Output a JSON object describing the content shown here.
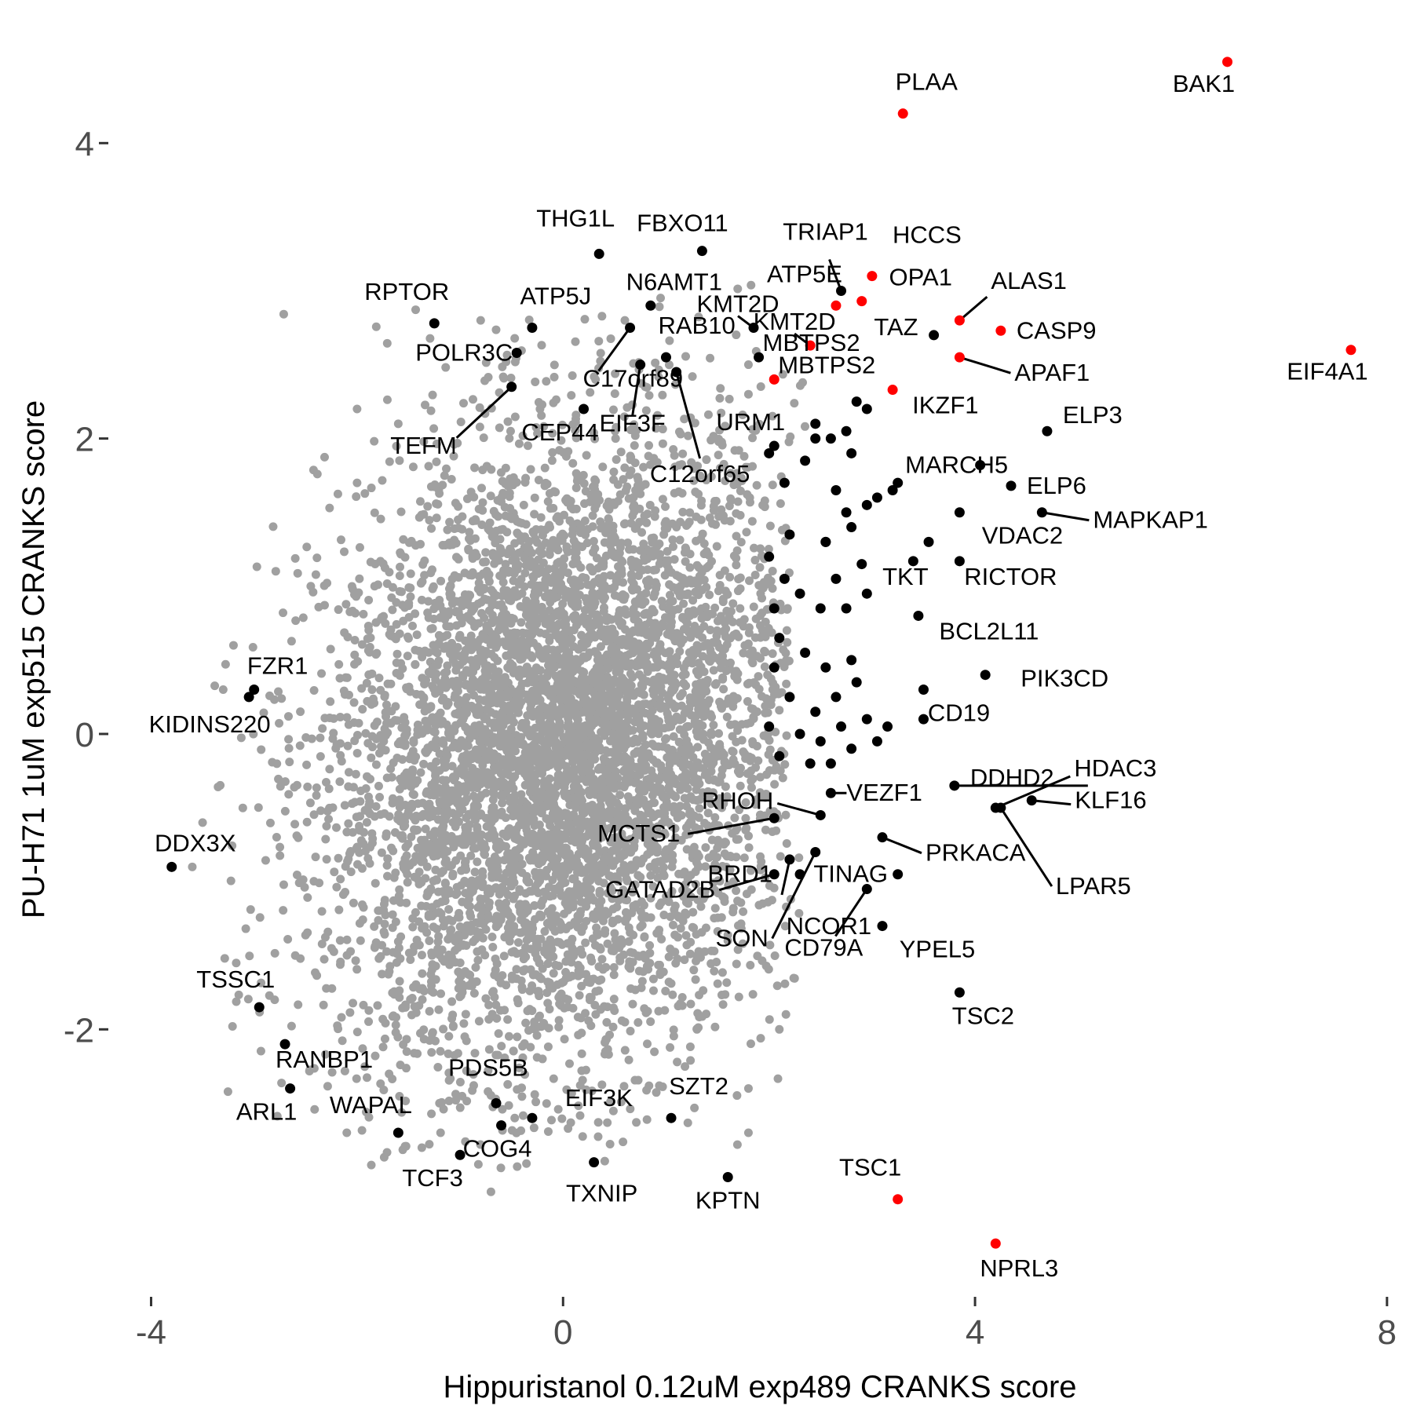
{
  "chart_data": {
    "type": "scatter",
    "title": "",
    "xlabel": "Hippuristanol 0.12uM exp489 CRANKS score",
    "ylabel": "PU-H71 1uM exp515 CRANKS score",
    "xlim": [
      -4.4,
      8.1
    ],
    "ylim": [
      -3.8,
      4.65
    ],
    "x_ticks": [
      -4,
      0,
      4,
      8
    ],
    "y_ticks": [
      -2,
      0,
      2,
      4
    ],
    "x_tick_labels": [
      "-4",
      "0",
      "4",
      "8"
    ],
    "y_tick_labels": [
      "-2",
      "0",
      "2",
      "4"
    ],
    "grid": false,
    "legend": "none",
    "colors": {
      "background": "#a0a0a0",
      "labeled": "#000000",
      "highlight": "#ff0000",
      "axis_text": "#4d4d4d"
    },
    "background_cloud": {
      "description_of_marks": "thousands of unlabeled gray points, dense elliptical cloud",
      "center": [
        0.0,
        -0.1
      ],
      "x_spread": 1.15,
      "y_spread": 1.05,
      "n_points": 6000,
      "outliers": [
        [
          -3.2,
          0.6
        ],
        [
          -3.6,
          -0.9
        ],
        [
          -2.6,
          -1.5
        ],
        [
          -2.8,
          -1.8
        ],
        [
          -2.1,
          -2.7
        ],
        [
          -1.2,
          -2.5
        ],
        [
          -0.7,
          -3.1
        ],
        [
          -0.2,
          -2.2
        ],
        [
          1.3,
          -2.0
        ],
        [
          2.1,
          -2.0
        ],
        [
          1.8,
          -2.7
        ],
        [
          1.8,
          -2.4
        ],
        [
          -1.6,
          2.1
        ],
        [
          -0.8,
          2.8
        ],
        [
          0.6,
          2.8
        ],
        [
          1.8,
          2.5
        ],
        [
          -2.0,
          1.7
        ],
        [
          1.8,
          2.3
        ],
        [
          -3.3,
          0.3
        ],
        [
          -3.5,
          -0.6
        ],
        [
          -2.0,
          2.2
        ],
        [
          1.6,
          -1.4
        ]
      ]
    },
    "series": [
      {
        "name": "",
        "color": "#ff0000",
        "points": [
          {
            "x": 3.3,
            "y": 4.2,
            "label": "PLAA"
          },
          {
            "x": 6.45,
            "y": 4.55,
            "label": "BAK1"
          },
          {
            "x": 7.65,
            "y": 2.6,
            "label": "EIF4A1"
          },
          {
            "x": 3.0,
            "y": 3.1,
            "label": "HCCS"
          },
          {
            "x": 2.9,
            "y": 2.93,
            "label": "OPA1"
          },
          {
            "x": 2.65,
            "y": 2.9,
            "label": "ATP5E"
          },
          {
            "x": 3.85,
            "y": 2.8,
            "label": "ALAS1"
          },
          {
            "x": 4.25,
            "y": 2.73,
            "label": "CASP9"
          },
          {
            "x": 2.4,
            "y": 2.63,
            "label": "KMT2D"
          },
          {
            "x": 3.85,
            "y": 2.55,
            "label": "APAF1"
          },
          {
            "x": 2.05,
            "y": 2.4,
            "label": "MBTPS2"
          },
          {
            "x": 3.2,
            "y": 2.33,
            "label": "IKZF1"
          },
          {
            "x": 3.25,
            "y": -3.15,
            "label": "TSC1"
          },
          {
            "x": 4.2,
            "y": -3.45,
            "label": "NPRL3"
          }
        ]
      },
      {
        "name": "",
        "color": "#000000",
        "points": [
          {
            "x": 0.35,
            "y": 3.25,
            "label": "THG1L"
          },
          {
            "x": 1.35,
            "y": 3.27,
            "label": "FBXO11"
          },
          {
            "x": 2.7,
            "y": 3.0,
            "label": "TRIAP1"
          },
          {
            "x": 0.85,
            "y": 2.9,
            "label": "N6AMT1"
          },
          {
            "x": -1.25,
            "y": 2.78,
            "label": "RPTOR"
          },
          {
            "x": -0.3,
            "y": 2.75,
            "label": "ATP5J"
          },
          {
            "x": 1.85,
            "y": 2.75,
            "label": "KMT2D"
          },
          {
            "x": -0.45,
            "y": 2.58,
            "label": "POLR3C"
          },
          {
            "x": 3.6,
            "y": 2.7,
            "label": "TAZ"
          },
          {
            "x": 0.65,
            "y": 2.75,
            "label": "C17orf89"
          },
          {
            "x": 1.0,
            "y": 2.55,
            "label": "RAB10"
          },
          {
            "x": 0.75,
            "y": 2.5,
            "label": "EIF3F"
          },
          {
            "x": 1.9,
            "y": 2.55,
            "label": "MBTPS2"
          },
          {
            "x": -0.5,
            "y": 2.35,
            "label": "TEFM"
          },
          {
            "x": 1.1,
            "y": 2.45,
            "label": "C12orf65"
          },
          {
            "x": 0.2,
            "y": 2.2,
            "label": "CEP44"
          },
          {
            "x": 2.05,
            "y": 1.95,
            "label": "URM1"
          },
          {
            "x": 4.7,
            "y": 2.05,
            "label": "ELP3"
          },
          {
            "x": 4.05,
            "y": 1.82,
            "label": "MARCH5"
          },
          {
            "x": 4.35,
            "y": 1.68,
            "label": "ELP6"
          },
          {
            "x": 4.65,
            "y": 1.5,
            "label": "MAPKAP1"
          },
          {
            "x": 3.85,
            "y": 1.5,
            "label": "VDAC2"
          },
          {
            "x": 3.4,
            "y": 1.17,
            "label": "TKT"
          },
          {
            "x": 3.85,
            "y": 1.17,
            "label": "RICTOR"
          },
          {
            "x": 3.45,
            "y": 0.8,
            "label": "BCL2L11"
          },
          {
            "x": 4.1,
            "y": 0.4,
            "label": "PIK3CD"
          },
          {
            "x": 3.5,
            "y": 0.3,
            "label": "CD19"
          },
          {
            "x": 3.8,
            "y": -0.35,
            "label": "DDHD2"
          },
          {
            "x": 4.2,
            "y": -0.5,
            "label": "HDAC3"
          },
          {
            "x": 4.55,
            "y": -0.45,
            "label": "KLF16"
          },
          {
            "x": 4.25,
            "y": -0.5,
            "label": "LPAR5"
          },
          {
            "x": 2.6,
            "y": -0.4,
            "label": "VEZF1"
          },
          {
            "x": 2.5,
            "y": -0.55,
            "label": "RHOH"
          },
          {
            "x": 2.05,
            "y": -0.57,
            "label": "MCTS1"
          },
          {
            "x": 2.3,
            "y": -0.95,
            "label": "BRD1"
          },
          {
            "x": 3.1,
            "y": -0.7,
            "label": "PRKACA"
          },
          {
            "x": 3.25,
            "y": -0.95,
            "label": "TINAG"
          },
          {
            "x": 2.05,
            "y": -0.95,
            "label": "GATAD2B"
          },
          {
            "x": 2.2,
            "y": -0.85,
            "label": "NCOR1"
          },
          {
            "x": 2.95,
            "y": -1.05,
            "label": "CD79A"
          },
          {
            "x": 3.1,
            "y": -1.3,
            "label": "YPEL5"
          },
          {
            "x": 2.45,
            "y": -0.8,
            "label": "SON"
          },
          {
            "x": 3.85,
            "y": -1.75,
            "label": "TSC2"
          },
          {
            "x": -3.0,
            "y": 0.3,
            "label": "FZR1"
          },
          {
            "x": -3.05,
            "y": 0.25,
            "label": "KIDINS220"
          },
          {
            "x": -3.8,
            "y": -0.9,
            "label": "DDX3X"
          },
          {
            "x": -2.95,
            "y": -1.85,
            "label": "TSSC1"
          },
          {
            "x": -2.7,
            "y": -2.1,
            "label": "RANBP1"
          },
          {
            "x": -2.65,
            "y": -2.4,
            "label": "ARL1"
          },
          {
            "x": -1.6,
            "y": -2.7,
            "label": "WAPAL"
          },
          {
            "x": -0.65,
            "y": -2.5,
            "label": "PDS5B"
          },
          {
            "x": -0.3,
            "y": -2.6,
            "label": "EIF3K"
          },
          {
            "x": -0.6,
            "y": -2.65,
            "label": "COG4"
          },
          {
            "x": -1.0,
            "y": -2.85,
            "label": "TCF3"
          },
          {
            "x": 0.3,
            "y": -2.9,
            "label": "TXNIP"
          },
          {
            "x": 1.05,
            "y": -2.6,
            "label": "SZT2"
          },
          {
            "x": 1.6,
            "y": -3.0,
            "label": "KPTN"
          }
        ]
      },
      {
        "name": "",
        "color": "#000000",
        "points": [
          {
            "x": 2.15,
            "y": 1.7
          },
          {
            "x": 2.35,
            "y": 1.85
          },
          {
            "x": 2.45,
            "y": 2.0
          },
          {
            "x": 2.6,
            "y": 2.0
          },
          {
            "x": 2.75,
            "y": 2.05
          },
          {
            "x": 2.8,
            "y": 1.9
          },
          {
            "x": 2.85,
            "y": 2.25
          },
          {
            "x": 2.95,
            "y": 2.2
          },
          {
            "x": 2.95,
            "y": 1.55
          },
          {
            "x": 3.05,
            "y": 1.6
          },
          {
            "x": 2.65,
            "y": 1.65
          },
          {
            "x": 2.75,
            "y": 1.5
          },
          {
            "x": 2.8,
            "y": 1.4
          },
          {
            "x": 2.9,
            "y": 1.15
          },
          {
            "x": 2.55,
            "y": 1.3
          },
          {
            "x": 2.2,
            "y": 1.35
          },
          {
            "x": 2.0,
            "y": 1.2
          },
          {
            "x": 2.15,
            "y": 1.05
          },
          {
            "x": 2.3,
            "y": 0.95
          },
          {
            "x": 2.5,
            "y": 0.85
          },
          {
            "x": 2.65,
            "y": 1.05
          },
          {
            "x": 2.75,
            "y": 0.85
          },
          {
            "x": 2.95,
            "y": 0.95
          },
          {
            "x": 2.05,
            "y": 0.85
          },
          {
            "x": 2.1,
            "y": 0.65
          },
          {
            "x": 2.35,
            "y": 0.55
          },
          {
            "x": 2.55,
            "y": 0.45
          },
          {
            "x": 2.8,
            "y": 0.5
          },
          {
            "x": 2.05,
            "y": 0.45
          },
          {
            "x": 2.2,
            "y": 0.25
          },
          {
            "x": 2.45,
            "y": 0.15
          },
          {
            "x": 2.65,
            "y": 0.25
          },
          {
            "x": 2.85,
            "y": 0.35
          },
          {
            "x": 2.0,
            "y": 0.05
          },
          {
            "x": 2.3,
            "y": 0.0
          },
          {
            "x": 2.5,
            "y": -0.05
          },
          {
            "x": 2.7,
            "y": 0.05
          },
          {
            "x": 2.95,
            "y": 0.1
          },
          {
            "x": 3.15,
            "y": 0.05
          },
          {
            "x": 2.1,
            "y": -0.15
          },
          {
            "x": 2.4,
            "y": -0.2
          },
          {
            "x": 2.6,
            "y": -0.2
          },
          {
            "x": 2.8,
            "y": -0.1
          },
          {
            "x": 3.05,
            "y": -0.05
          },
          {
            "x": 3.5,
            "y": 0.1
          },
          {
            "x": 3.55,
            "y": 1.3
          },
          {
            "x": 3.25,
            "y": 1.7
          },
          {
            "x": 3.2,
            "y": 1.65
          },
          {
            "x": 2.0,
            "y": 1.9
          },
          {
            "x": 2.55,
            "y": 1.3
          },
          {
            "x": 2.45,
            "y": 2.1
          }
        ]
      }
    ]
  }
}
